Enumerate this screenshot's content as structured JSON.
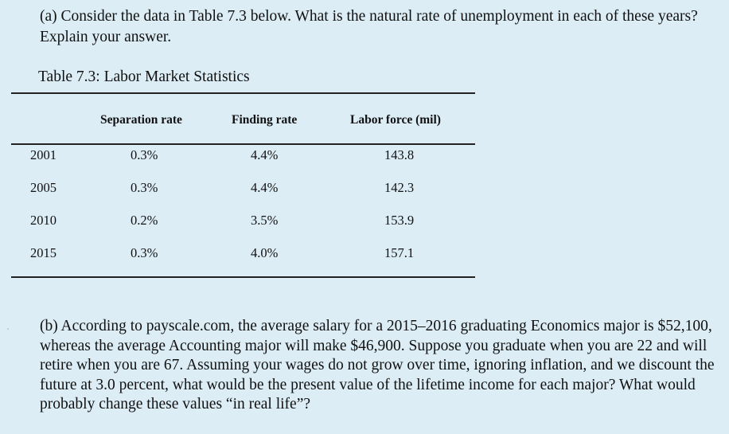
{
  "question_a": "(a) Consider the data in Table 7.3 below. What is the natural rate of unemployment in each of these years? Explain your answer.",
  "table": {
    "caption": "Table 7.3: Labor Market Statistics",
    "headers": [
      "Separation rate",
      "Finding rate",
      "Labor force (mil)"
    ],
    "rows": [
      {
        "year": "2001",
        "separation": "0.3%",
        "finding": "4.4%",
        "labor_force": "143.8"
      },
      {
        "year": "2005",
        "separation": "0.3%",
        "finding": "4.4%",
        "labor_force": "142.3"
      },
      {
        "year": "2010",
        "separation": "0.2%",
        "finding": "3.5%",
        "labor_force": "153.9"
      },
      {
        "year": "2015",
        "separation": "0.3%",
        "finding": "4.0%",
        "labor_force": "157.1"
      }
    ]
  },
  "question_b": "(b) According to payscale.com, the average salary for a 2015–2016 graduating Economics major is $52,100, whereas the average Accounting major will make $46,900. Suppose you graduate when you are 22 and will retire when you are 67. Assuming your wages do not grow over time, ignoring inflation, and we discount the future at 3.0 percent, what would be the present value of the lifetime income for each major? What would probably change these values “in real life”?"
}
